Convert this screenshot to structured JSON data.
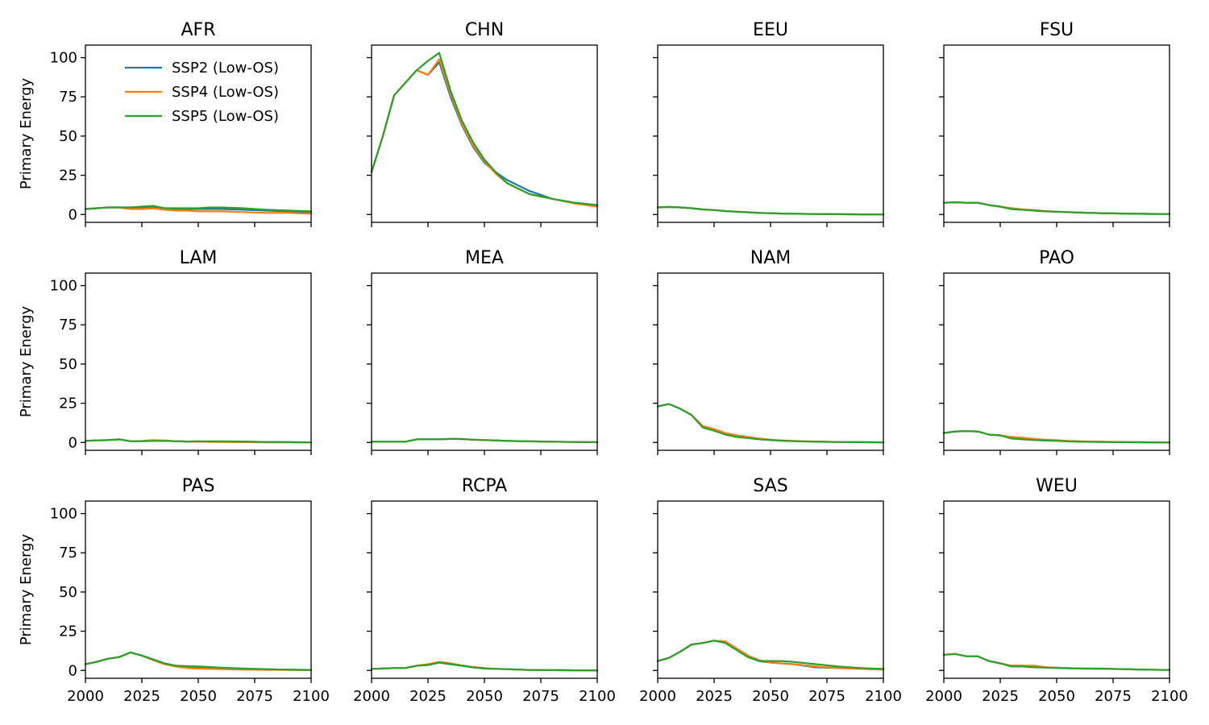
{
  "chart_data": {
    "type": "line",
    "ylabel": "Primary Energy",
    "xlim": [
      2000,
      2100
    ],
    "ylim": [
      -5,
      108
    ],
    "xticks": [
      2000,
      2025,
      2050,
      2075,
      2100
    ],
    "yticks": [
      0,
      25,
      50,
      75,
      100
    ],
    "legend_location": "top-right of first panel",
    "series_style": [
      {
        "name": "SSP2 (Low-OS)",
        "color": "#1f77b4"
      },
      {
        "name": "SSP4 (Low-OS)",
        "color": "#ff7f0e"
      },
      {
        "name": "SSP5 (Low-OS)",
        "color": "#2ca02c"
      }
    ],
    "x": [
      2000,
      2005,
      2010,
      2015,
      2020,
      2025,
      2030,
      2035,
      2040,
      2045,
      2050,
      2055,
      2060,
      2070,
      2080,
      2090,
      2100
    ],
    "panels": [
      {
        "title": "AFR",
        "series": [
          {
            "name": "SSP2 (Low-OS)",
            "values": [
              3.5,
              4,
              4.5,
              4.5,
              4.5,
              4.5,
              5,
              4,
              3.5,
              3.5,
              3.5,
              3.5,
              3.5,
              3,
              2.5,
              2,
              1.5
            ]
          },
          {
            "name": "SSP4 (Low-OS)",
            "values": [
              3.5,
              4,
              4.5,
              4.5,
              3.5,
              3.5,
              4,
              3,
              2.5,
              2.5,
              2,
              2,
              2,
              1.5,
              1,
              1,
              0.5
            ]
          },
          {
            "name": "SSP5 (Low-OS)",
            "values": [
              3.5,
              4,
              4.5,
              4.5,
              4.5,
              5,
              5.5,
              4,
              4,
              4,
              4,
              4.5,
              4.5,
              4,
              3,
              2.5,
              2
            ]
          }
        ]
      },
      {
        "title": "CHN",
        "series": [
          {
            "name": "SSP2 (Low-OS)",
            "values": [
              27,
              50,
              76,
              84,
              92,
              89,
              97,
              75,
              57,
              43,
              33,
              27,
              22,
              15,
              10,
              7.5,
              6
            ]
          },
          {
            "name": "SSP4 (Low-OS)",
            "values": [
              27,
              50,
              76,
              84,
              92,
              89,
              99,
              77,
              58,
              44,
              34,
              26,
              20,
              13,
              10,
              7,
              5
            ]
          },
          {
            "name": "SSP5 (Low-OS)",
            "values": [
              27,
              50,
              76,
              84,
              92,
              98,
              103,
              79,
              60,
              46,
              35,
              27,
              20,
              13,
              10,
              7.5,
              6
            ]
          }
        ]
      },
      {
        "title": "EEU",
        "series": [
          {
            "name": "SSP2 (Low-OS)",
            "values": [
              4.5,
              4.8,
              4.5,
              4,
              3.2,
              2.8,
              2.2,
              1.8,
              1.4,
              1,
              0.8,
              0.6,
              0.5,
              0.3,
              0.2,
              0.1,
              0
            ]
          },
          {
            "name": "SSP4 (Low-OS)",
            "values": [
              4.5,
              4.8,
              4.5,
              4,
              3.2,
              2.8,
              2.2,
              1.8,
              1.4,
              1,
              0.8,
              0.6,
              0.5,
              0.3,
              0.2,
              0.1,
              0
            ]
          },
          {
            "name": "SSP5 (Low-OS)",
            "values": [
              4.5,
              4.8,
              4.5,
              4,
              3.2,
              2.8,
              2.2,
              1.8,
              1.4,
              1,
              0.8,
              0.6,
              0.5,
              0.3,
              0.2,
              0.1,
              0
            ]
          }
        ]
      },
      {
        "title": "FSU",
        "series": [
          {
            "name": "SSP2 (Low-OS)",
            "values": [
              7.5,
              7.8,
              7.5,
              7.5,
              6,
              5,
              3.5,
              3,
              2.5,
              2,
              1.8,
              1.5,
              1.2,
              0.8,
              0.6,
              0.4,
              0.3
            ]
          },
          {
            "name": "SSP4 (Low-OS)",
            "values": [
              7.5,
              7.8,
              7.5,
              7.5,
              6,
              5,
              4,
              3.2,
              2.8,
              2.2,
              1.8,
              1.5,
              1.2,
              0.8,
              0.6,
              0.4,
              0.3
            ]
          },
          {
            "name": "SSP5 (Low-OS)",
            "values": [
              7.5,
              7.8,
              7.5,
              7.5,
              6,
              5,
              3.5,
              3,
              2.5,
              2,
              1.8,
              1.5,
              1.2,
              0.8,
              0.6,
              0.4,
              0.3
            ]
          }
        ]
      },
      {
        "title": "LAM",
        "series": [
          {
            "name": "SSP2 (Low-OS)",
            "values": [
              1,
              1.3,
              1.5,
              2,
              0.8,
              0.8,
              1,
              1,
              0.8,
              0.6,
              0.6,
              0.6,
              0.6,
              0.5,
              0.3,
              0.2,
              0.1
            ]
          },
          {
            "name": "SSP4 (Low-OS)",
            "values": [
              1,
              1.3,
              1.5,
              2,
              0.8,
              1,
              1.5,
              1.2,
              0.8,
              0.6,
              0.5,
              0.4,
              0.3,
              0.2,
              0.1,
              0.1,
              0
            ]
          },
          {
            "name": "SSP5 (Low-OS)",
            "values": [
              1,
              1.3,
              1.5,
              2,
              0.8,
              0.8,
              1,
              1,
              0.8,
              0.6,
              0.8,
              0.7,
              0.7,
              0.6,
              0.3,
              0.2,
              0.1
            ]
          }
        ]
      },
      {
        "title": "MEA",
        "series": [
          {
            "name": "SSP2 (Low-OS)",
            "values": [
              0.5,
              0.5,
              0.5,
              0.5,
              2,
              2,
              2,
              2.3,
              2.2,
              1.8,
              1.5,
              1.3,
              1,
              0.7,
              0.5,
              0.3,
              0.2
            ]
          },
          {
            "name": "SSP4 (Low-OS)",
            "values": [
              0.5,
              0.5,
              0.5,
              0.5,
              2,
              2,
              2,
              2.3,
              2.2,
              1.8,
              1.5,
              1.3,
              1,
              0.7,
              0.5,
              0.3,
              0.2
            ]
          },
          {
            "name": "SSP5 (Low-OS)",
            "values": [
              0.5,
              0.5,
              0.5,
              0.5,
              2,
              2,
              2,
              2.3,
              2.2,
              1.8,
              1.5,
              1.3,
              1,
              0.7,
              0.5,
              0.3,
              0.2
            ]
          }
        ]
      },
      {
        "title": "NAM",
        "series": [
          {
            "name": "SSP2 (Low-OS)",
            "values": [
              23,
              24.5,
              21.5,
              17.5,
              10,
              8,
              5.5,
              4,
              3,
              2.2,
              1.5,
              1.2,
              0.9,
              0.5,
              0.3,
              0.2,
              0.1
            ]
          },
          {
            "name": "SSP4 (Low-OS)",
            "values": [
              23,
              24.5,
              21.5,
              17.5,
              10.5,
              8.5,
              6,
              4.5,
              3.5,
              2.5,
              1.8,
              1.3,
              1,
              0.6,
              0.3,
              0.2,
              0.1
            ]
          },
          {
            "name": "SSP5 (Low-OS)",
            "values": [
              23,
              24.5,
              21.5,
              17.5,
              9.5,
              7.5,
              5,
              3.5,
              2.8,
              2,
              1.5,
              1.1,
              0.8,
              0.5,
              0.3,
              0.2,
              0.1
            ]
          }
        ]
      },
      {
        "title": "PAO",
        "series": [
          {
            "name": "SSP2 (Low-OS)",
            "values": [
              6,
              7,
              7.2,
              7,
              5,
              4.5,
              3,
              2.3,
              1.8,
              1.5,
              1.2,
              0.8,
              0.6,
              0.4,
              0.2,
              0.1,
              0
            ]
          },
          {
            "name": "SSP4 (Low-OS)",
            "values": [
              6,
              7,
              7.2,
              7,
              5,
              4.5,
              3.5,
              3,
              2.3,
              1.8,
              1.4,
              1,
              0.8,
              0.5,
              0.3,
              0.2,
              0.1
            ]
          },
          {
            "name": "SSP5 (Low-OS)",
            "values": [
              6,
              7,
              7.2,
              7,
              5,
              4.5,
              2.5,
              2,
              1.5,
              1.2,
              1,
              0.7,
              0.5,
              0.3,
              0.2,
              0.1,
              0
            ]
          }
        ]
      },
      {
        "title": "PAS",
        "series": [
          {
            "name": "SSP2 (Low-OS)",
            "values": [
              4,
              5.5,
              7.5,
              8.5,
              11.5,
              9.5,
              7,
              4.5,
              3,
              2.5,
              2,
              1.8,
              1.5,
              1,
              0.7,
              0.5,
              0.3
            ]
          },
          {
            "name": "SSP4 (Low-OS)",
            "values": [
              4,
              5.5,
              7.5,
              8.5,
              11.5,
              9.5,
              6.5,
              4,
              2.5,
              1.5,
              1.2,
              1,
              0.8,
              0.5,
              0.4,
              0.3,
              0.2
            ]
          },
          {
            "name": "SSP5 (Low-OS)",
            "values": [
              4,
              5.5,
              7.5,
              8.5,
              11.5,
              9.5,
              7,
              4.5,
              3,
              2.7,
              2.5,
              2.2,
              1.8,
              1.2,
              0.8,
              0.5,
              0.3
            ]
          }
        ]
      },
      {
        "title": "RCPA",
        "series": [
          {
            "name": "SSP2 (Low-OS)",
            "values": [
              1,
              1.2,
              1.5,
              1.5,
              3,
              3.5,
              5,
              4,
              3,
              2,
              1.2,
              1,
              0.8,
              0.3,
              0.2,
              0.1,
              0
            ]
          },
          {
            "name": "SSP4 (Low-OS)",
            "values": [
              1,
              1.2,
              1.5,
              1.5,
              3,
              4,
              5.5,
              4.5,
              3.2,
              2.2,
              1.5,
              1,
              0.8,
              0.3,
              0.2,
              0.1,
              0
            ]
          },
          {
            "name": "SSP5 (Low-OS)",
            "values": [
              1,
              1.2,
              1.5,
              1.5,
              3,
              3.5,
              5,
              4,
              3,
              2,
              1.2,
              1,
              0.8,
              0.3,
              0.2,
              0.1,
              0
            ]
          }
        ]
      },
      {
        "title": "SAS",
        "series": [
          {
            "name": "SSP2 (Low-OS)",
            "values": [
              6,
              8,
              12,
              16.5,
              17.5,
              19,
              17.5,
              13,
              8.5,
              6,
              5,
              4.5,
              4,
              2,
              1.5,
              1,
              0.5
            ]
          },
          {
            "name": "SSP4 (Low-OS)",
            "values": [
              6,
              8,
              12,
              16.5,
              17.5,
              19,
              18.5,
              14,
              9.5,
              6.5,
              5,
              4.5,
              4,
              2.5,
              1.5,
              1,
              0.5
            ]
          },
          {
            "name": "SSP5 (Low-OS)",
            "values": [
              6,
              8,
              12,
              16.5,
              17.5,
              19,
              17.5,
              13,
              8.5,
              6,
              6,
              6,
              5.5,
              4,
              2.5,
              1.5,
              1
            ]
          }
        ]
      },
      {
        "title": "WEU",
        "series": [
          {
            "name": "SSP2 (Low-OS)",
            "values": [
              10,
              10.5,
              9,
              9,
              6,
              4.5,
              3,
              3,
              2.5,
              2,
              1.8,
              1.5,
              1.2,
              1,
              0.8,
              0.5,
              0.3
            ]
          },
          {
            "name": "SSP4 (Low-OS)",
            "values": [
              10,
              10.5,
              9,
              9,
              6,
              4.5,
              3,
              3,
              3,
              2,
              1.8,
              1.5,
              1.2,
              1,
              0.8,
              0.5,
              0.3
            ]
          },
          {
            "name": "SSP5 (Low-OS)",
            "values": [
              10,
              10.5,
              9,
              9,
              6,
              4.5,
              2.5,
              2.5,
              2,
              1.8,
              1.5,
              1.3,
              1.2,
              1.2,
              0.8,
              0.5,
              0.3
            ]
          }
        ]
      }
    ]
  }
}
